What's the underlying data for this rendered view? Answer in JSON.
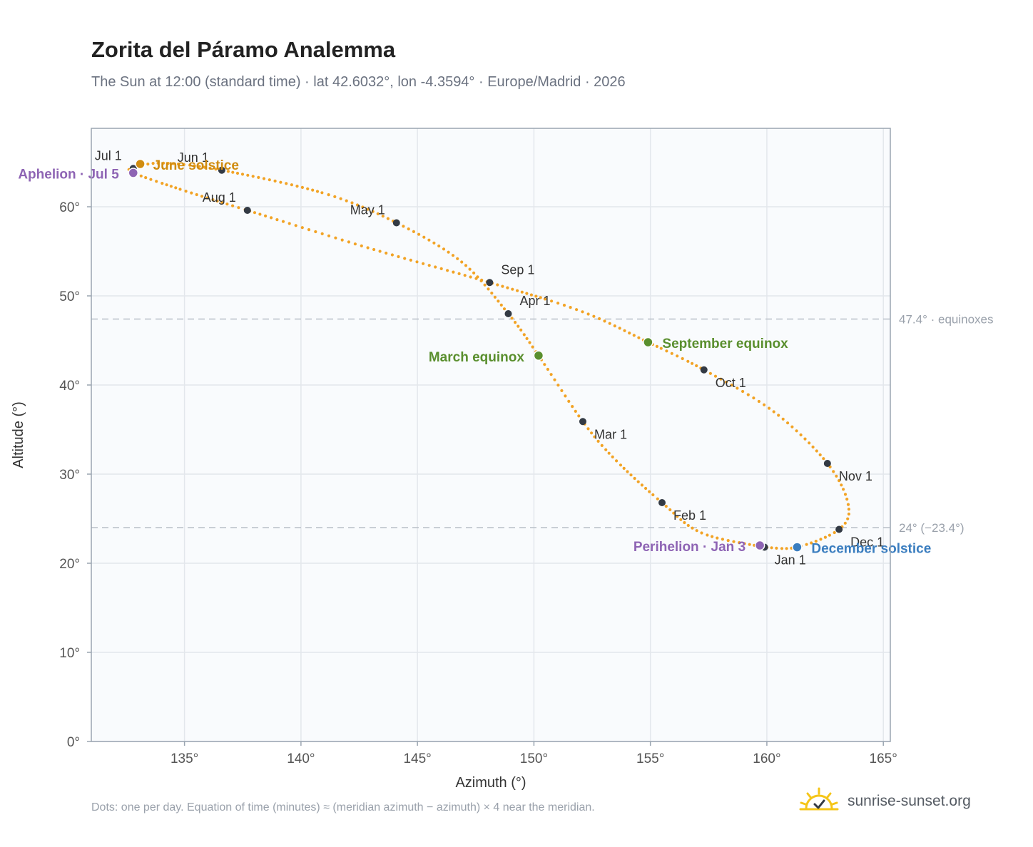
{
  "header": {
    "title": "Zorita del Páramo Analemma",
    "subtitle": "The Sun at 12:00 (standard time) · lat 42.6032°, lon -4.3594° · Europe/Madrid · 2026"
  },
  "footer": {
    "note": "Dots: one per day. Equation of time (minutes) ≈ (meridian azimuth − azimuth) × 4 near the meridian.",
    "brand": "sunrise-sunset.org"
  },
  "colors": {
    "curve": "#f2a325",
    "month_dot": "#333a44",
    "solstice_june": "#d08c10",
    "solstice_december": "#3a7dbf",
    "equinox": "#5a8f2e",
    "apsis": "#8e64b4",
    "grid": "#e3e7ec",
    "plot_bg": "#f9fbfd"
  },
  "chart_data": {
    "type": "scatter",
    "xlabel": "Azimuth (°)",
    "ylabel": "Altitude (°)",
    "xlim": [
      131,
      165.3
    ],
    "ylim": [
      0,
      68.8
    ],
    "xticks": [
      135,
      140,
      145,
      150,
      155,
      160,
      165
    ],
    "yticks": [
      0,
      10,
      20,
      30,
      40,
      50,
      60
    ],
    "x_tick_labels": [
      "135°",
      "140°",
      "145°",
      "150°",
      "155°",
      "160°",
      "165°"
    ],
    "y_tick_labels": [
      "0°",
      "10°",
      "20°",
      "30°",
      "40°",
      "50°",
      "60°"
    ],
    "grid": true,
    "reference_lines": [
      {
        "y": 47.4,
        "label": "47.4° · equinoxes"
      },
      {
        "y": 24.0,
        "label": "24° (−23.4°)"
      }
    ],
    "months": [
      {
        "label": "Jan 1",
        "x": 159.9,
        "y": 21.8
      },
      {
        "label": "Feb 1",
        "x": 155.5,
        "y": 26.8
      },
      {
        "label": "Mar 1",
        "x": 152.1,
        "y": 35.9
      },
      {
        "label": "Apr 1",
        "x": 148.9,
        "y": 48.0
      },
      {
        "label": "May 1",
        "x": 144.1,
        "y": 58.2
      },
      {
        "label": "Jun 1",
        "x": 136.6,
        "y": 64.1
      },
      {
        "label": "Jul 1",
        "x": 132.8,
        "y": 64.3
      },
      {
        "label": "Aug 1",
        "x": 137.7,
        "y": 59.6
      },
      {
        "label": "Sep 1",
        "x": 148.1,
        "y": 51.5
      },
      {
        "label": "Oct 1",
        "x": 157.3,
        "y": 41.7
      },
      {
        "label": "Nov 1",
        "x": 162.6,
        "y": 31.2
      },
      {
        "label": "Dec 1",
        "x": 163.1,
        "y": 23.8
      }
    ],
    "events": [
      {
        "label": "June solstice",
        "x": 133.1,
        "y": 64.8,
        "kind": "solstice_june"
      },
      {
        "label": "Aphelion · Jul 5",
        "x": 132.8,
        "y": 63.8,
        "kind": "apsis"
      },
      {
        "label": "March equinox",
        "x": 150.2,
        "y": 43.3,
        "kind": "equinox"
      },
      {
        "label": "September equinox",
        "x": 154.9,
        "y": 44.8,
        "kind": "equinox"
      },
      {
        "label": "Perihelion · Jan 3",
        "x": 159.7,
        "y": 22.0,
        "kind": "apsis"
      },
      {
        "label": "December solstice",
        "x": 161.3,
        "y": 21.8,
        "kind": "solstice_december"
      }
    ],
    "curve": [
      {
        "x": 159.9,
        "y": 21.8
      },
      {
        "x": 157.2,
        "y": 23.4
      },
      {
        "x": 155.5,
        "y": 26.8
      },
      {
        "x": 153.5,
        "y": 31.6
      },
      {
        "x": 152.1,
        "y": 35.9
      },
      {
        "x": 150.2,
        "y": 43.3
      },
      {
        "x": 148.9,
        "y": 48.0
      },
      {
        "x": 146.9,
        "y": 53.8
      },
      {
        "x": 144.1,
        "y": 58.2
      },
      {
        "x": 141.0,
        "y": 61.5
      },
      {
        "x": 136.6,
        "y": 64.1
      },
      {
        "x": 134.0,
        "y": 64.9
      },
      {
        "x": 132.8,
        "y": 64.3
      },
      {
        "x": 132.8,
        "y": 63.8
      },
      {
        "x": 135.0,
        "y": 61.8
      },
      {
        "x": 137.7,
        "y": 59.6
      },
      {
        "x": 143.0,
        "y": 55.3
      },
      {
        "x": 148.1,
        "y": 51.5
      },
      {
        "x": 152.0,
        "y": 48.3
      },
      {
        "x": 154.9,
        "y": 44.8
      },
      {
        "x": 157.3,
        "y": 41.7
      },
      {
        "x": 160.3,
        "y": 37.0
      },
      {
        "x": 162.6,
        "y": 31.2
      },
      {
        "x": 163.5,
        "y": 26.5
      },
      {
        "x": 163.1,
        "y": 23.8
      },
      {
        "x": 161.3,
        "y": 21.8
      },
      {
        "x": 159.9,
        "y": 21.8
      }
    ]
  }
}
